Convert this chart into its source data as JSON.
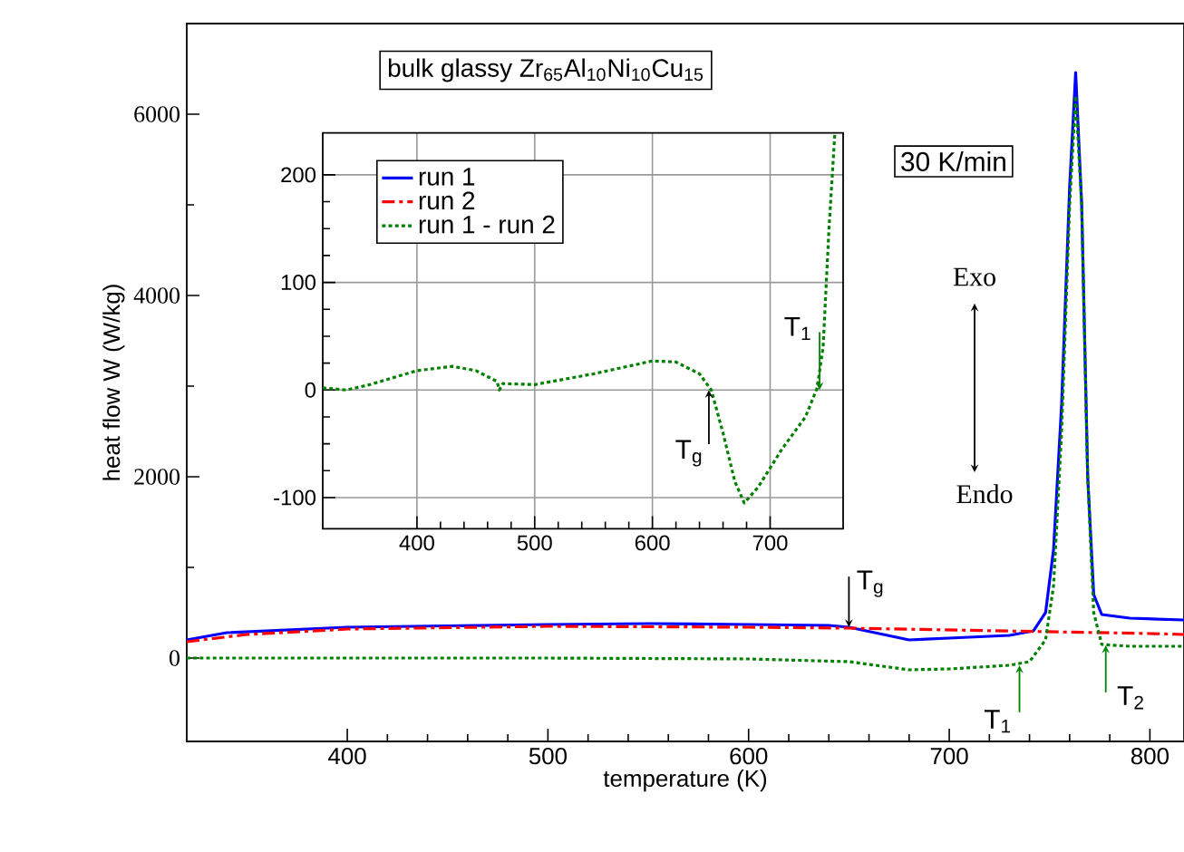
{
  "chart_data": [
    {
      "type": "line",
      "title": "bulk glassy Zr$_{65}$Al$_{10}$Ni$_{10}$Cu$_{15}$",
      "xlabel": "temperature (K)",
      "ylabel": "heat flow W (W/kg)",
      "xlim": [
        320,
        817
      ],
      "ylim": [
        -920,
        7000
      ],
      "xticks": [
        400,
        500,
        600,
        700,
        800
      ],
      "yticks": [
        0,
        2000,
        4000,
        6000
      ],
      "legend": "top left",
      "series": [
        {
          "name": "run 1",
          "color": "#0000ff",
          "line_style": "solid",
          "x": [
            320,
            340,
            400,
            500,
            550,
            600,
            640,
            650,
            680,
            700,
            730,
            742,
            748,
            752,
            756,
            760,
            763,
            766,
            769,
            772,
            776,
            790,
            817
          ],
          "values": [
            200,
            280,
            340,
            370,
            380,
            370,
            360,
            340,
            200,
            220,
            250,
            300,
            500,
            1200,
            2800,
            5200,
            6460,
            5000,
            2000,
            700,
            480,
            440,
            420
          ]
        },
        {
          "name": "run 2",
          "color": "#ff0000",
          "line_style": "dashdot",
          "x": [
            320,
            350,
            400,
            500,
            600,
            650,
            700,
            750,
            800,
            817
          ],
          "values": [
            180,
            260,
            320,
            350,
            340,
            330,
            310,
            290,
            270,
            260
          ]
        },
        {
          "name": "run 1 - run 2",
          "color": "#008000",
          "line_style": "dotted",
          "x": [
            320,
            400,
            500,
            600,
            650,
            680,
            700,
            730,
            740,
            748,
            752,
            756,
            760,
            763,
            766,
            769,
            772,
            776,
            790,
            817
          ],
          "values": [
            0,
            0,
            0,
            -10,
            -40,
            -130,
            -120,
            -80,
            -40,
            200,
            800,
            2500,
            5000,
            6200,
            5000,
            2000,
            500,
            150,
            130,
            130
          ]
        }
      ],
      "annotations": [
        "30 K/min",
        "Exo",
        "Endo",
        {
          "text": "T$_{g}$",
          "x": 650,
          "y": 340
        },
        {
          "text": "T$_{1}$",
          "x": 735,
          "y": -80
        },
        {
          "text": "T$_{2}$",
          "x": 778,
          "y": 140
        }
      ]
    },
    {
      "type": "line",
      "xlim": [
        320,
        762
      ],
      "ylim": [
        -129,
        239
      ],
      "xticks": [
        400,
        500,
        600,
        700
      ],
      "yticks": [
        -100,
        0,
        100,
        200
      ],
      "grid": true,
      "series": [
        {
          "color": "#008000",
          "line_style": "dotted",
          "x": [
            320,
            340,
            360,
            400,
            430,
            450,
            468,
            470,
            473,
            500,
            550,
            600,
            620,
            640,
            650,
            660,
            670,
            678,
            690,
            710,
            730,
            740,
            745,
            750,
            755
          ],
          "values": [
            2,
            0,
            5,
            18,
            22,
            18,
            8,
            0,
            6,
            5,
            15,
            27,
            26,
            15,
            0,
            -40,
            -85,
            -105,
            -90,
            -55,
            -25,
            2,
            40,
            150,
            239
          ]
        }
      ],
      "annotations": [
        {
          "text": "T$_{g}$",
          "x": 648,
          "y": 0
        },
        {
          "text": "T$_{1}$",
          "x": 742,
          "y": 0
        }
      ]
    }
  ]
}
